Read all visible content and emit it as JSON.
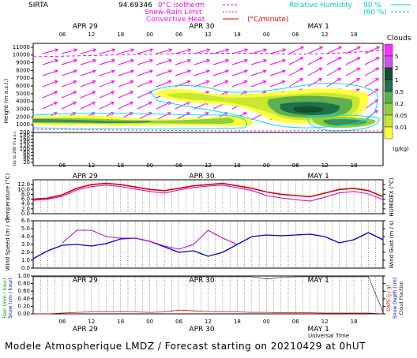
{
  "header": {
    "station": "SIRTA",
    "coords": "94.69346",
    "legend_isotherm": "0°C isotherm",
    "legend_snowrain": "Snow-Rain Limit",
    "legend_convective": "Convective Heat",
    "legend_convective_unit": "(°C/minute)",
    "legend_rh": "Relative Humidity",
    "legend_rh_90": "90 %",
    "legend_rh_60": "(60 %)"
  },
  "footer": {
    "text": "Modele Atmospherique LMDZ / Forecast starting on 20210429 at 0hUT"
  },
  "time_axis": {
    "hour_ticks": [
      "06",
      "12",
      "18",
      "00",
      "06",
      "12",
      "18",
      "00",
      "06",
      "12",
      "18"
    ],
    "day_labels": [
      "APR 29",
      "APR 30",
      "MAY 1"
    ],
    "universal_time": "Universal Time"
  },
  "colors": {
    "isotherm": "#ff00ff",
    "temperature": "#e00000",
    "humidex": "#cc00cc",
    "wind_speed": "#0000cc",
    "wind_gust": "#cc00cc",
    "rh": "#00e0e0",
    "cloud_levels": [
      "#ffff40",
      "#c8e830",
      "#90d040",
      "#60b050",
      "#3c9060",
      "#20704a",
      "#105030",
      "#d0d0d0"
    ]
  },
  "chart_data": [
    {
      "type": "heatmap",
      "name": "clouds",
      "ylabel": "Height (m a.s.l.)",
      "ylabel2": "Up to 200 m a.s.l.",
      "yticks_upper": [
        1000,
        2000,
        3000,
        4000,
        5000,
        6000,
        7000,
        8000,
        9000,
        10000,
        11000
      ],
      "yticks_lower": [
        20,
        40,
        60,
        80,
        100,
        120,
        140,
        160,
        180,
        200
      ],
      "legend_title": "Clouds",
      "legend_unit": "(g/kg)",
      "legend_levels": [
        "0.01",
        "0.05",
        "0.2",
        "0.5",
        "1",
        "2",
        "5"
      ]
    },
    {
      "type": "line",
      "name": "temperature",
      "ylabel": "Temperature (°C)",
      "ylabel_right": "HUMIDEX (°C)",
      "yticks": [
        "0.0",
        "2.0",
        "4.0",
        "6.0",
        "8.0",
        "10.0",
        "12.0"
      ],
      "ylim": [
        0,
        14
      ],
      "x_hours": [
        0,
        3,
        6,
        9,
        12,
        15,
        18,
        21,
        24,
        27,
        30,
        33,
        36,
        39,
        42,
        45,
        48,
        51,
        54,
        57,
        60,
        63,
        66,
        69,
        72
      ],
      "series": [
        {
          "values": [
            6.0,
            6.4,
            7.8,
            10.5,
            12.0,
            12.5,
            12.0,
            11.0,
            10.0,
            9.5,
            10.5,
            11.5,
            12.0,
            12.5,
            11.5,
            10.5,
            9.0,
            8.0,
            7.5,
            7.0,
            8.5,
            10.0,
            10.5,
            9.5,
            7.0
          ]
        },
        {
          "values": [
            5.5,
            6.0,
            7.2,
            9.8,
            11.2,
            11.8,
            11.2,
            10.2,
            9.2,
            8.5,
            9.8,
            10.8,
            11.4,
            11.8,
            10.7,
            9.6,
            7.5,
            6.5,
            5.8,
            5.2,
            6.8,
            8.6,
            9.2,
            8.2,
            5.8
          ]
        }
      ]
    },
    {
      "type": "line",
      "name": "wind",
      "ylabel": "Wind Speed (m / s)",
      "ylabel_right": "Wind Gust (m / s)",
      "yticks": [
        "0.0",
        "1.0",
        "2.0",
        "3.0",
        "4.0",
        "5.0",
        "6.0"
      ],
      "ylim": [
        0,
        6
      ],
      "x_hours": [
        0,
        3,
        6,
        9,
        12,
        15,
        18,
        21,
        24,
        27,
        30,
        33,
        36,
        39,
        42,
        45,
        48,
        51,
        54,
        57,
        60,
        63,
        66,
        69,
        72
      ],
      "series": [
        {
          "values": [
            1.2,
            2.2,
            2.9,
            3.0,
            2.8,
            3.1,
            3.7,
            3.8,
            3.4,
            2.7,
            2.0,
            2.2,
            1.5,
            2.0,
            3.0,
            4.0,
            4.2,
            4.1,
            4.2,
            4.3,
            4.0,
            3.2,
            3.6,
            4.5,
            3.6
          ]
        },
        {
          "values": [
            null,
            null,
            3.2,
            4.8,
            4.8,
            4.0,
            3.8,
            3.8,
            3.4,
            2.8,
            2.4,
            3.0,
            4.8,
            3.8,
            3.0,
            null,
            null,
            null,
            null,
            null,
            null,
            null,
            null,
            null,
            null
          ]
        }
      ]
    },
    {
      "type": "line",
      "name": "precipitation",
      "ylabel_left": "Rain (mm / hour)",
      "ylabel_left2": "Snow (cm / hour)",
      "ylabel_right": "CAPE (J / g)",
      "ylabel_right2": "Snow Depth (cm)",
      "ylabel_right3": "Cloud Fraction",
      "yticks": [
        "0.00",
        "0.20",
        "0.40",
        "0.60",
        "0.80",
        "1.00"
      ],
      "ylim": [
        0,
        1
      ],
      "x_hours": [
        0,
        3,
        6,
        9,
        12,
        15,
        18,
        21,
        24,
        27,
        30,
        33,
        36,
        39,
        42,
        45,
        48,
        51,
        54,
        57,
        60,
        63,
        66,
        69,
        72
      ],
      "series": [
        {
          "values": [
            0.98,
            0.98,
            0.98,
            0.98,
            0.98,
            0.98,
            0.98,
            0.98,
            0.98,
            0.98,
            0.98,
            0.98,
            0.98,
            0.98,
            0.98,
            0.98,
            0.92,
            0.96,
            0.98,
            0.98,
            0.98,
            0.98,
            0.98,
            0.98,
            0.05
          ]
        },
        {
          "values": [
            0.0,
            0.0,
            0.02,
            0.04,
            0.05,
            0.05,
            0.06,
            0.05,
            0.04,
            0.05,
            0.1,
            0.08,
            0.06,
            0.05,
            0.05,
            0.04,
            0.04,
            0.03,
            0.03,
            0.03,
            0.02,
            0.02,
            0.02,
            0.02,
            0.0
          ]
        }
      ]
    }
  ]
}
